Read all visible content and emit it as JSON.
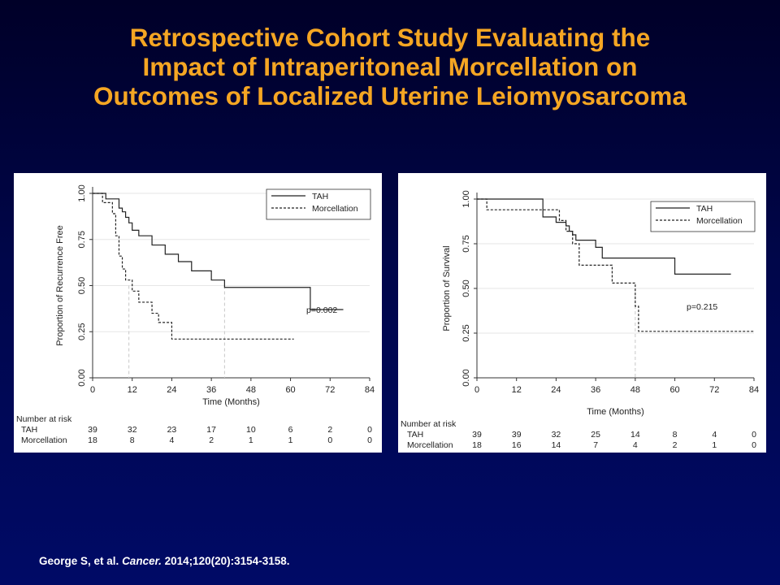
{
  "slide": {
    "title_lines": [
      "Retrospective Cohort Study Evaluating the",
      "Impact of Intraperitoneal Morcellation on",
      "Outcomes of Localized Uterine Leiomyosarcoma"
    ],
    "citation": {
      "authors": "George S, et al.",
      "journal": "Cancer.",
      "details": "2014;120(20):3154-3158."
    }
  },
  "colors": {
    "title": "#f5a623",
    "background": "#000a66",
    "text": "#ffffff"
  },
  "chart_data": [
    {
      "type": "line",
      "subtype": "kaplan-meier",
      "xlabel": "Time (Months)",
      "ylabel": "Proportion of Recurrence Free",
      "xticks": [
        "0",
        "12",
        "24",
        "36",
        "48",
        "60",
        "72",
        "84"
      ],
      "yticks": [
        "0.00",
        "0.25",
        "0.50",
        "0.75",
        "1.00"
      ],
      "xlim": [
        0,
        84
      ],
      "ylim": [
        0,
        1
      ],
      "legend_position": "top-right",
      "grid": true,
      "annotation": "p=0.002",
      "median_markers_x": [
        11,
        40
      ],
      "series": [
        {
          "name": "TAH",
          "style": "solid",
          "x": [
            0,
            2,
            4,
            7,
            8,
            9,
            10,
            11,
            12,
            14,
            18,
            20,
            22,
            26,
            30,
            36,
            40,
            66,
            66,
            76
          ],
          "y": [
            1.0,
            1.0,
            0.97,
            0.97,
            0.92,
            0.9,
            0.87,
            0.84,
            0.8,
            0.77,
            0.72,
            0.72,
            0.67,
            0.63,
            0.58,
            0.53,
            0.49,
            0.49,
            0.37,
            0.37
          ]
        },
        {
          "name": "Morcellation",
          "style": "dashed",
          "x": [
            0,
            2,
            3,
            6,
            7,
            8,
            9,
            10,
            11,
            12,
            14,
            18,
            20,
            22,
            24,
            30,
            40,
            61
          ],
          "y": [
            1.0,
            1.0,
            0.95,
            0.89,
            0.77,
            0.66,
            0.59,
            0.53,
            0.53,
            0.47,
            0.41,
            0.35,
            0.3,
            0.3,
            0.21,
            0.21,
            0.21,
            0.21
          ]
        }
      ],
      "risk_table": {
        "heading": "Number at risk",
        "rows": [
          {
            "label": "TAH",
            "values": [
              "39",
              "32",
              "23",
              "17",
              "10",
              "6",
              "2",
              "0"
            ]
          },
          {
            "label": "Morcellation",
            "values": [
              "18",
              "8",
              "4",
              "2",
              "1",
              "1",
              "0",
              "0"
            ]
          }
        ]
      }
    },
    {
      "type": "line",
      "subtype": "kaplan-meier",
      "xlabel": "Time (Months)",
      "ylabel": "Proportion of Survival",
      "xticks": [
        "0",
        "12",
        "24",
        "36",
        "48",
        "60",
        "72",
        "84"
      ],
      "yticks": [
        "0.00",
        "0.25",
        "0.50",
        "0.75",
        "1.00"
      ],
      "xlim": [
        0,
        84
      ],
      "ylim": [
        0,
        1
      ],
      "legend_position": "top-right",
      "grid": true,
      "annotation": "p=0.215",
      "median_markers_x": [
        48
      ],
      "series": [
        {
          "name": "TAH",
          "style": "solid",
          "x": [
            0,
            17,
            20,
            24,
            26,
            27,
            28,
            29,
            30,
            35,
            36,
            38,
            60,
            60,
            77
          ],
          "y": [
            1.0,
            1.0,
            0.9,
            0.87,
            0.87,
            0.85,
            0.82,
            0.8,
            0.77,
            0.77,
            0.73,
            0.67,
            0.67,
            0.58,
            0.58
          ]
        },
        {
          "name": "Morcellation",
          "style": "dashed",
          "x": [
            0,
            2,
            3,
            19,
            25,
            27,
            29,
            31,
            35,
            38,
            41,
            48,
            48,
            49,
            49,
            84
          ],
          "y": [
            1.0,
            1.0,
            0.94,
            0.94,
            0.88,
            0.82,
            0.75,
            0.63,
            0.63,
            0.63,
            0.53,
            0.53,
            0.4,
            0.4,
            0.26,
            0.26
          ]
        }
      ],
      "risk_table": {
        "heading": "Number at risk",
        "rows": [
          {
            "label": "TAH",
            "values": [
              "39",
              "39",
              "32",
              "25",
              "14",
              "8",
              "4",
              "0"
            ]
          },
          {
            "label": "Morcellation",
            "values": [
              "18",
              "16",
              "14",
              "7",
              "4",
              "2",
              "1",
              "0"
            ]
          }
        ]
      }
    }
  ]
}
